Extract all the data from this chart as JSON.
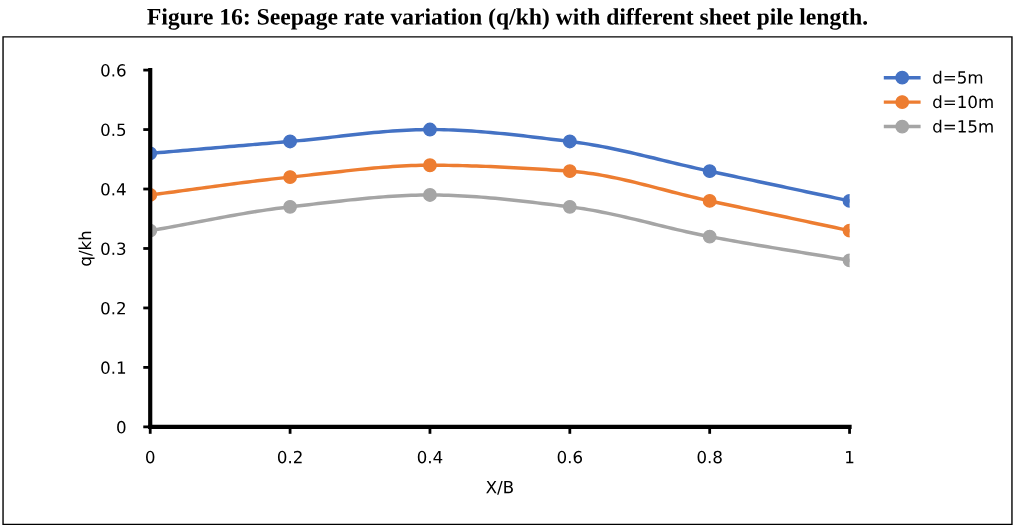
{
  "chart_data": {
    "type": "line",
    "title": "Figure 16: Seepage rate variation (q/kh) with different sheet pile length.",
    "xlabel": "X/B",
    "ylabel": "q/kh",
    "x": [
      0,
      0.2,
      0.4,
      0.6,
      0.8,
      1
    ],
    "series": [
      {
        "name": "d=5m",
        "color": "#4472c4",
        "values": [
          0.46,
          0.48,
          0.5,
          0.48,
          0.43,
          0.38
        ]
      },
      {
        "name": "d=10m",
        "color": "#ed7d31",
        "values": [
          0.39,
          0.42,
          0.44,
          0.43,
          0.38,
          0.33
        ]
      },
      {
        "name": "d=15m",
        "color": "#a5a5a5",
        "values": [
          0.33,
          0.37,
          0.39,
          0.37,
          0.32,
          0.28
        ]
      }
    ],
    "xlim": [
      0,
      1
    ],
    "xticks": [
      0,
      0.2,
      0.4,
      0.6,
      0.8,
      1
    ],
    "ylim": [
      0,
      0.6
    ],
    "yticks": [
      0,
      0.1,
      0.2,
      0.3,
      0.4,
      0.5,
      0.6
    ],
    "grid": false,
    "legend": "top right",
    "marker": "circle",
    "line_style": "solid"
  }
}
